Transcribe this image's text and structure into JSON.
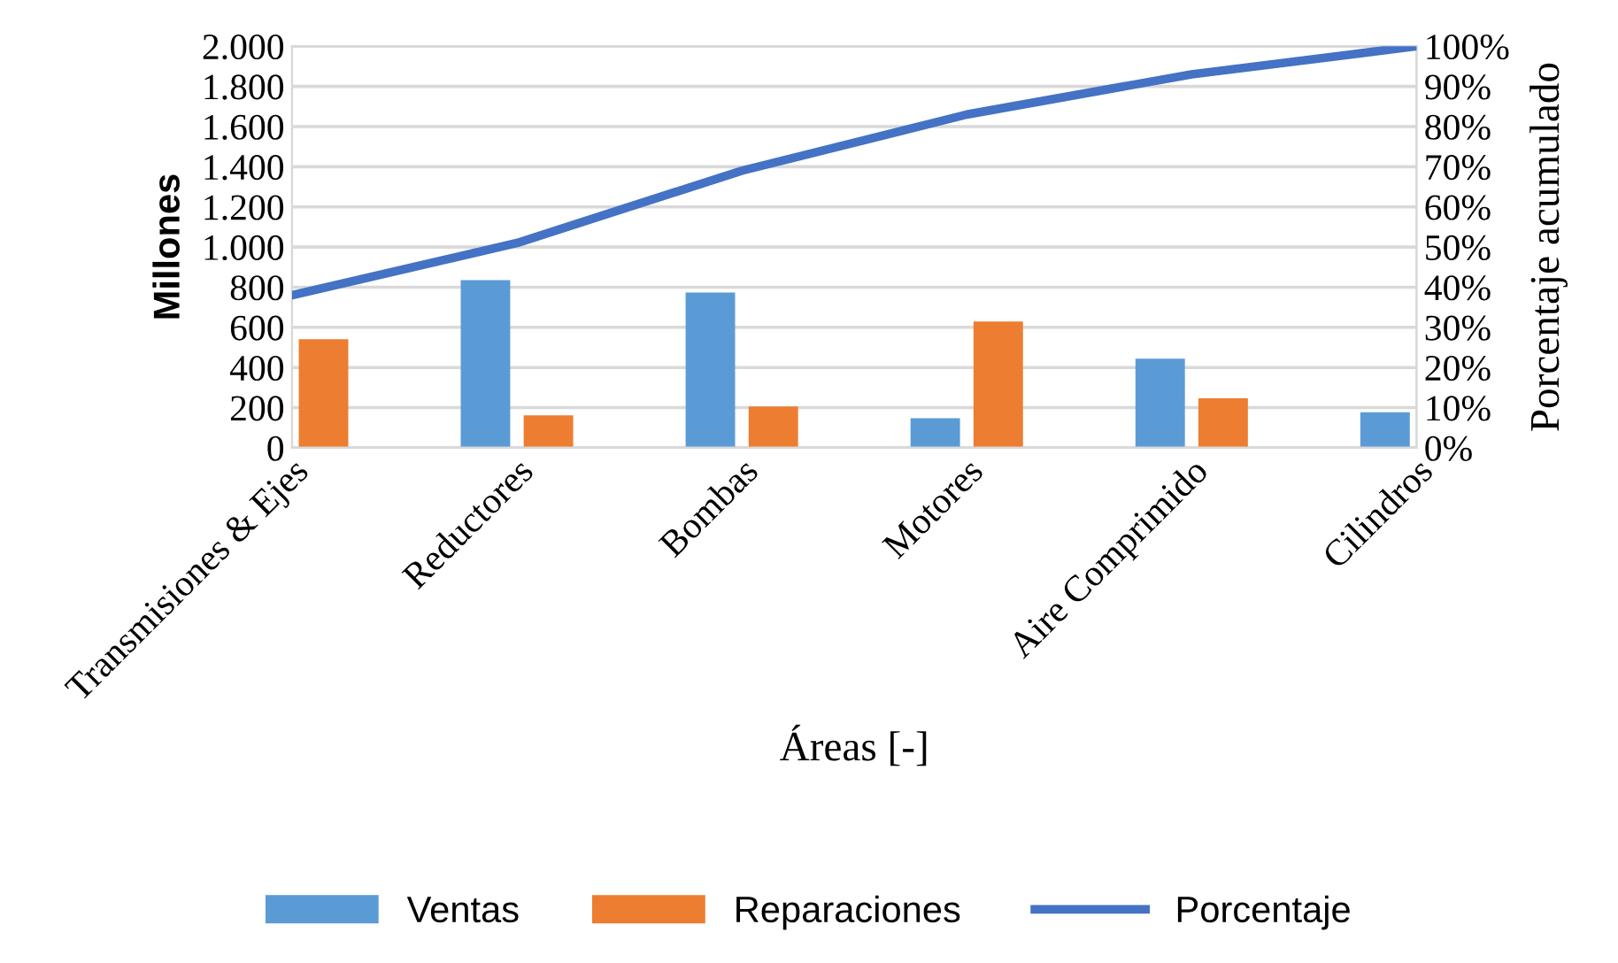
{
  "chart_data": {
    "type": "bar",
    "xlabel": "Áreas [-]",
    "ylabel": "Millones",
    "y2label": "Porcentaje acumulado",
    "categories": [
      "Transmisiones & Ejes",
      "Reductores",
      "Bombas",
      "Motores",
      "Aire Comprimido",
      "Cilindros"
    ],
    "series": [
      {
        "name": "Ventas",
        "color": "#5b9bd5",
        "values": [
          0,
          835,
          773,
          147,
          444,
          177
        ]
      },
      {
        "name": "Reparaciones",
        "color": "#ed7d31",
        "values": [
          541,
          162,
          206,
          629,
          247,
          0
        ]
      },
      {
        "name": "Porcentaje",
        "type": "line",
        "axis": "y2",
        "color": "#4472c4",
        "values": [
          38,
          51,
          69,
          83,
          93,
          100
        ]
      }
    ],
    "ylim": [
      0,
      2000
    ],
    "yticks": [
      0,
      200,
      400,
      600,
      800,
      {
        "value": 1000,
        "label": "1.000"
      },
      {
        "value": 1200,
        "label": "1.200"
      },
      {
        "value": 1400,
        "label": "1.400"
      },
      {
        "value": 1600,
        "label": "1.600"
      },
      {
        "value": 1800,
        "label": "1.800"
      },
      {
        "value": 2000,
        "label": "2.000"
      }
    ],
    "y2lim": [
      0,
      100
    ],
    "y2ticks": [
      {
        "value": 0,
        "label": "0%"
      },
      {
        "value": 10,
        "label": "10%"
      },
      {
        "value": 20,
        "label": "20%"
      },
      {
        "value": 30,
        "label": "30%"
      },
      {
        "value": 40,
        "label": "40%"
      },
      {
        "value": 50,
        "label": "50%"
      },
      {
        "value": 60,
        "label": "60%"
      },
      {
        "value": 70,
        "label": "70%"
      },
      {
        "value": 80,
        "label": "80%"
      },
      {
        "value": 90,
        "label": "90%"
      },
      {
        "value": 100,
        "label": "100%"
      }
    ],
    "grid": "y",
    "legend": "bottom",
    "marker": "none",
    "line_style": "solid"
  }
}
